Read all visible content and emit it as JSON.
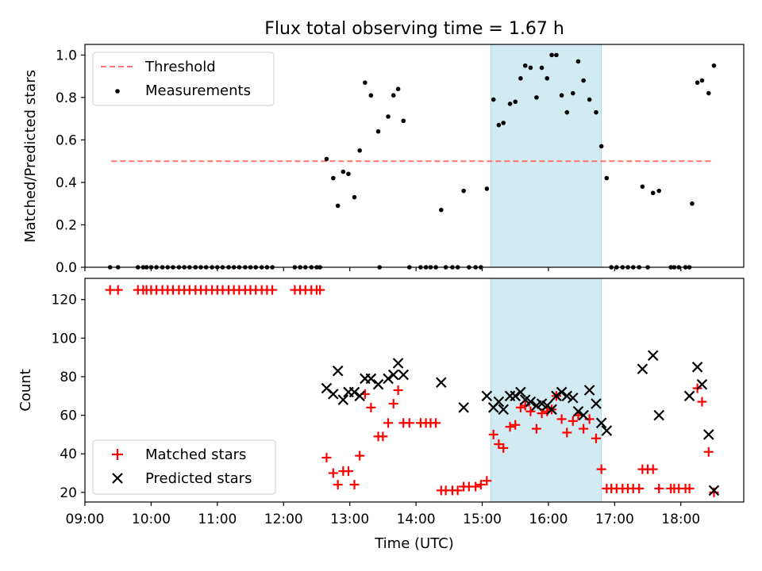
{
  "title": "Flux total observing time = 1.67 h",
  "colors": {
    "threshold": "#ff7070",
    "measurement": "#000000",
    "matched": "#ff0000",
    "predicted": "#000000",
    "highlight": "#add8e6"
  },
  "chart_data": [
    {
      "type": "scatter",
      "panel": "top",
      "ylabel": "Matched/Predicted stars",
      "xlim": [
        9.0,
        18.95
      ],
      "ylim": [
        0.0,
        1.05
      ],
      "y_ticks": [
        0.0,
        0.2,
        0.4,
        0.6,
        0.8,
        1.0
      ],
      "y_tick_labels": [
        "0.0",
        "0.2",
        "0.4",
        "0.6",
        "0.8",
        "1.0"
      ],
      "highlight_span": [
        15.13,
        16.8
      ],
      "legend_position": "upper-left",
      "threshold": {
        "name": "Threshold",
        "y": 0.5,
        "x_range": [
          9.4,
          18.5
        ]
      },
      "series": [
        {
          "name": "Measurements",
          "points": [
            [
              9.38,
              0
            ],
            [
              9.5,
              0
            ],
            [
              9.8,
              0
            ],
            [
              9.88,
              0
            ],
            [
              9.93,
              0
            ],
            [
              10.0,
              0
            ],
            [
              10.08,
              0
            ],
            [
              10.17,
              0
            ],
            [
              10.25,
              0
            ],
            [
              10.33,
              0
            ],
            [
              10.42,
              0
            ],
            [
              10.5,
              0
            ],
            [
              10.58,
              0
            ],
            [
              10.67,
              0
            ],
            [
              10.75,
              0
            ],
            [
              10.83,
              0
            ],
            [
              10.92,
              0
            ],
            [
              11.0,
              0
            ],
            [
              11.08,
              0
            ],
            [
              11.17,
              0
            ],
            [
              11.25,
              0
            ],
            [
              11.33,
              0
            ],
            [
              11.42,
              0
            ],
            [
              11.5,
              0
            ],
            [
              11.58,
              0
            ],
            [
              11.67,
              0
            ],
            [
              11.75,
              0
            ],
            [
              11.83,
              0
            ],
            [
              12.17,
              0
            ],
            [
              12.25,
              0
            ],
            [
              12.33,
              0
            ],
            [
              12.42,
              0
            ],
            [
              12.5,
              0
            ],
            [
              12.55,
              0
            ],
            [
              12.65,
              0.51
            ],
            [
              12.75,
              0.42
            ],
            [
              12.82,
              0.29
            ],
            [
              12.9,
              0.45
            ],
            [
              12.98,
              0.44
            ],
            [
              13.07,
              0.33
            ],
            [
              13.15,
              0.55
            ],
            [
              13.23,
              0.87
            ],
            [
              13.32,
              0.81
            ],
            [
              13.43,
              0.64
            ],
            [
              13.45,
              0
            ],
            [
              13.58,
              0.71
            ],
            [
              13.66,
              0.81
            ],
            [
              13.73,
              0.84
            ],
            [
              13.81,
              0.69
            ],
            [
              13.9,
              0
            ],
            [
              14.07,
              0
            ],
            [
              14.15,
              0
            ],
            [
              14.22,
              0
            ],
            [
              14.3,
              0
            ],
            [
              14.38,
              0.27
            ],
            [
              14.45,
              0
            ],
            [
              14.55,
              0
            ],
            [
              14.63,
              0
            ],
            [
              14.72,
              0.36
            ],
            [
              14.8,
              0
            ],
            [
              14.9,
              0
            ],
            [
              14.98,
              0
            ],
            [
              15.07,
              0.37
            ],
            [
              15.17,
              0.79
            ],
            [
              15.25,
              0.67
            ],
            [
              15.32,
              0.68
            ],
            [
              15.42,
              0.77
            ],
            [
              15.5,
              0.78
            ],
            [
              15.58,
              0.89
            ],
            [
              15.65,
              0.95
            ],
            [
              15.73,
              0.94
            ],
            [
              15.82,
              0.8
            ],
            [
              15.9,
              0.94
            ],
            [
              15.98,
              0.89
            ],
            [
              16.05,
              1.0
            ],
            [
              16.12,
              1.0
            ],
            [
              16.2,
              0.81
            ],
            [
              16.28,
              0.73
            ],
            [
              16.37,
              0.82
            ],
            [
              16.45,
              0.97
            ],
            [
              16.53,
              0.88
            ],
            [
              16.62,
              0.79
            ],
            [
              16.72,
              0.73
            ],
            [
              16.8,
              0.57
            ],
            [
              16.88,
              0.42
            ],
            [
              16.95,
              0
            ],
            [
              17.03,
              0
            ],
            [
              17.12,
              0
            ],
            [
              17.2,
              0
            ],
            [
              17.28,
              0
            ],
            [
              17.37,
              0
            ],
            [
              17.42,
              0.38
            ],
            [
              17.5,
              0
            ],
            [
              17.58,
              0.35
            ],
            [
              17.67,
              0.36
            ],
            [
              17.85,
              0
            ],
            [
              17.9,
              0
            ],
            [
              17.97,
              0
            ],
            [
              18.07,
              0
            ],
            [
              18.13,
              0
            ],
            [
              18.17,
              0.3
            ],
            [
              18.25,
              0.87
            ],
            [
              18.32,
              0.88
            ],
            [
              18.42,
              0.82
            ],
            [
              18.5,
              0.95
            ]
          ]
        }
      ]
    },
    {
      "type": "scatter",
      "panel": "bottom",
      "xlabel": "Time (UTC)",
      "ylabel": "Count",
      "xlim": [
        9.0,
        18.95
      ],
      "ylim": [
        15,
        131
      ],
      "x_ticks": [
        9,
        10,
        11,
        12,
        13,
        14,
        15,
        16,
        17,
        18
      ],
      "x_tick_labels": [
        "09:00",
        "10:00",
        "11:00",
        "12:00",
        "13:00",
        "14:00",
        "15:00",
        "16:00",
        "17:00",
        "18:00"
      ],
      "y_ticks": [
        20,
        40,
        60,
        80,
        100,
        120
      ],
      "y_tick_labels": [
        "20",
        "40",
        "60",
        "80",
        "100",
        "120"
      ],
      "highlight_span": [
        15.13,
        16.8
      ],
      "legend_position": "lower-left",
      "series": [
        {
          "name": "Matched stars",
          "marker": "plus",
          "points": [
            [
              9.38,
              125
            ],
            [
              9.5,
              125
            ],
            [
              9.8,
              125
            ],
            [
              9.88,
              125
            ],
            [
              9.93,
              125
            ],
            [
              10.0,
              125
            ],
            [
              10.08,
              125
            ],
            [
              10.17,
              125
            ],
            [
              10.25,
              125
            ],
            [
              10.33,
              125
            ],
            [
              10.42,
              125
            ],
            [
              10.5,
              125
            ],
            [
              10.58,
              125
            ],
            [
              10.67,
              125
            ],
            [
              10.75,
              125
            ],
            [
              10.83,
              125
            ],
            [
              10.92,
              125
            ],
            [
              11.0,
              125
            ],
            [
              11.08,
              125
            ],
            [
              11.17,
              125
            ],
            [
              11.25,
              125
            ],
            [
              11.33,
              125
            ],
            [
              11.42,
              125
            ],
            [
              11.5,
              125
            ],
            [
              11.58,
              125
            ],
            [
              11.67,
              125
            ],
            [
              11.75,
              125
            ],
            [
              11.83,
              125
            ],
            [
              12.17,
              125
            ],
            [
              12.25,
              125
            ],
            [
              12.33,
              125
            ],
            [
              12.42,
              125
            ],
            [
              12.5,
              125
            ],
            [
              12.55,
              125
            ],
            [
              12.65,
              38
            ],
            [
              12.75,
              30
            ],
            [
              12.82,
              24
            ],
            [
              12.9,
              31
            ],
            [
              12.98,
              31
            ],
            [
              13.07,
              24
            ],
            [
              13.15,
              39
            ],
            [
              13.23,
              71
            ],
            [
              13.32,
              64
            ],
            [
              13.43,
              49
            ],
            [
              13.5,
              49
            ],
            [
              13.58,
              56
            ],
            [
              13.66,
              66
            ],
            [
              13.73,
              73
            ],
            [
              13.81,
              56
            ],
            [
              13.9,
              56
            ],
            [
              14.07,
              56
            ],
            [
              14.15,
              56
            ],
            [
              14.22,
              56
            ],
            [
              14.3,
              56
            ],
            [
              14.38,
              21
            ],
            [
              14.45,
              21
            ],
            [
              14.55,
              21
            ],
            [
              14.63,
              21
            ],
            [
              14.72,
              23
            ],
            [
              14.8,
              23
            ],
            [
              14.9,
              23
            ],
            [
              14.98,
              24
            ],
            [
              15.07,
              26
            ],
            [
              15.17,
              50
            ],
            [
              15.25,
              45
            ],
            [
              15.32,
              43
            ],
            [
              15.42,
              54
            ],
            [
              15.5,
              55
            ],
            [
              15.58,
              64
            ],
            [
              15.65,
              65
            ],
            [
              15.73,
              62
            ],
            [
              15.82,
              53
            ],
            [
              15.9,
              61
            ],
            [
              15.98,
              62
            ],
            [
              16.05,
              63
            ],
            [
              16.12,
              70
            ],
            [
              16.2,
              58
            ],
            [
              16.28,
              51
            ],
            [
              16.37,
              57
            ],
            [
              16.45,
              60
            ],
            [
              16.53,
              53
            ],
            [
              16.62,
              58
            ],
            [
              16.72,
              48
            ],
            [
              16.8,
              32
            ],
            [
              16.88,
              22
            ],
            [
              16.95,
              22
            ],
            [
              17.03,
              22
            ],
            [
              17.12,
              22
            ],
            [
              17.2,
              22
            ],
            [
              17.28,
              22
            ],
            [
              17.37,
              22
            ],
            [
              17.42,
              32
            ],
            [
              17.5,
              32
            ],
            [
              17.58,
              32
            ],
            [
              17.67,
              22
            ],
            [
              17.85,
              22
            ],
            [
              17.9,
              22
            ],
            [
              17.97,
              22
            ],
            [
              18.07,
              22
            ],
            [
              18.13,
              22
            ],
            [
              18.25,
              74
            ],
            [
              18.32,
              67
            ],
            [
              18.42,
              41
            ],
            [
              18.5,
              20
            ]
          ]
        },
        {
          "name": "Predicted stars",
          "marker": "x",
          "points": [
            [
              12.65,
              74
            ],
            [
              12.75,
              71
            ],
            [
              12.82,
              83
            ],
            [
              12.9,
              68
            ],
            [
              12.98,
              72
            ],
            [
              13.07,
              72
            ],
            [
              13.15,
              70
            ],
            [
              13.23,
              79
            ],
            [
              13.32,
              79
            ],
            [
              13.43,
              76
            ],
            [
              13.58,
              79
            ],
            [
              13.66,
              81
            ],
            [
              13.73,
              87
            ],
            [
              13.81,
              81
            ],
            [
              14.38,
              77
            ],
            [
              14.72,
              64
            ],
            [
              15.07,
              70
            ],
            [
              15.17,
              64
            ],
            [
              15.25,
              67
            ],
            [
              15.32,
              63
            ],
            [
              15.42,
              70
            ],
            [
              15.5,
              70
            ],
            [
              15.58,
              72
            ],
            [
              15.65,
              68
            ],
            [
              15.73,
              67
            ],
            [
              15.82,
              65
            ],
            [
              15.9,
              66
            ],
            [
              15.98,
              65
            ],
            [
              16.05,
              63
            ],
            [
              16.12,
              70
            ],
            [
              16.2,
              72
            ],
            [
              16.28,
              70
            ],
            [
              16.37,
              69
            ],
            [
              16.45,
              62
            ],
            [
              16.53,
              60
            ],
            [
              16.62,
              73
            ],
            [
              16.72,
              66
            ],
            [
              16.8,
              56
            ],
            [
              16.88,
              52
            ],
            [
              17.42,
              84
            ],
            [
              17.58,
              91
            ],
            [
              17.67,
              60
            ],
            [
              18.13,
              70
            ],
            [
              18.25,
              85
            ],
            [
              18.32,
              76
            ],
            [
              18.42,
              50
            ],
            [
              18.5,
              21
            ]
          ]
        }
      ]
    }
  ]
}
